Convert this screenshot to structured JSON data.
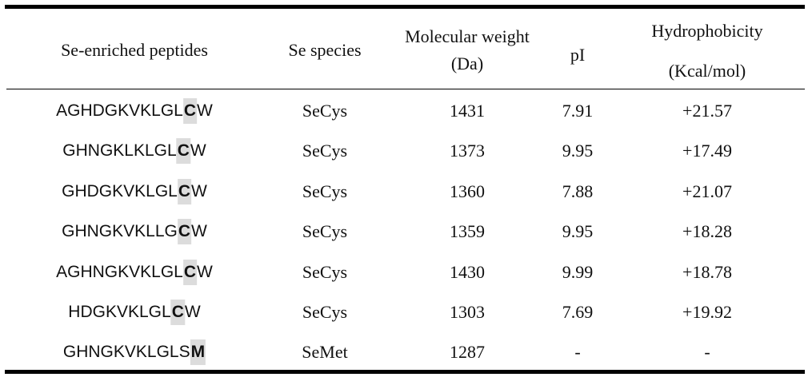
{
  "headers": {
    "peptides": "Se-enriched peptides",
    "species": "Se species",
    "mw_line1": "Molecular weight",
    "mw_line2": "(Da)",
    "pi": "pI",
    "hydro_line1": "Hydrophobicity",
    "hydro_line2": "(Kcal/mol)"
  },
  "rows": [
    {
      "seq_pre": "AGHDGKVKLGL",
      "seq_hl": "C",
      "seq_post": "W",
      "species": "SeCys",
      "mw": "1431",
      "pi": "7.91",
      "hydro": "+21.57"
    },
    {
      "seq_pre": "GHNGKLKLGL",
      "seq_hl": "C",
      "seq_post": "W",
      "species": "SeCys",
      "mw": "1373",
      "pi": "9.95",
      "hydro": "+17.49"
    },
    {
      "seq_pre": "GHDGKVKLGL",
      "seq_hl": "C",
      "seq_post": "W",
      "species": "SeCys",
      "mw": "1360",
      "pi": "7.88",
      "hydro": "+21.07"
    },
    {
      "seq_pre": "GHNGKVKLLG",
      "seq_hl": "C",
      "seq_post": "W",
      "species": "SeCys",
      "mw": "1359",
      "pi": "9.95",
      "hydro": "+18.28"
    },
    {
      "seq_pre": "AGHNGKVKLGL",
      "seq_hl": "C",
      "seq_post": "W",
      "species": "SeCys",
      "mw": "1430",
      "pi": "9.99",
      "hydro": "+18.78"
    },
    {
      "seq_pre": "HDGKVKLGL",
      "seq_hl": "C",
      "seq_post": "W",
      "species": "SeCys",
      "mw": "1303",
      "pi": "7.69",
      "hydro": "+19.92"
    },
    {
      "seq_pre": "GHNGKVKLGLS",
      "seq_hl": "M",
      "seq_post": "",
      "species": "SeMet",
      "mw": "1287",
      "pi": "-",
      "hydro": "-"
    }
  ]
}
